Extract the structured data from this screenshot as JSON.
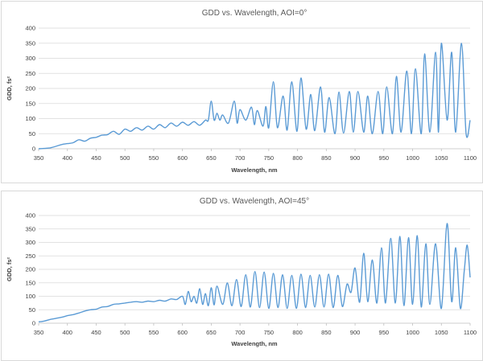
{
  "chart_data": [
    {
      "type": "line",
      "title": "GDD vs. Wavelength, AOI=0°",
      "xlabel": "Wavelength, nm",
      "ylabel": "GDD, fs²",
      "xlim": [
        350,
        1100
      ],
      "ylim": [
        0,
        400
      ],
      "xticks": [
        350,
        400,
        450,
        500,
        550,
        600,
        650,
        700,
        750,
        800,
        850,
        900,
        950,
        1000,
        1050,
        1100
      ],
      "yticks": [
        0,
        50,
        100,
        150,
        200,
        250,
        300,
        350,
        400
      ],
      "grid": true,
      "series": [
        {
          "name": "GDD",
          "color": "#5b9bd5",
          "x": [
            350,
            360,
            370,
            380,
            390,
            400,
            410,
            420,
            430,
            440,
            450,
            460,
            470,
            480,
            490,
            500,
            510,
            520,
            530,
            540,
            550,
            560,
            570,
            580,
            590,
            600,
            610,
            620,
            630,
            640,
            645,
            650,
            655,
            660,
            665,
            670,
            680,
            690,
            695,
            700,
            710,
            720,
            725,
            730,
            740,
            745,
            750,
            758,
            765,
            775,
            782,
            790,
            799,
            806,
            815,
            823,
            830,
            840,
            847,
            855,
            865,
            872,
            880,
            890,
            897,
            905,
            915,
            922,
            930,
            940,
            948,
            955,
            965,
            972,
            980,
            990,
            998,
            1005,
            1015,
            1021,
            1030,
            1040,
            1045,
            1050,
            1060,
            1068,
            1075,
            1085,
            1093,
            1100
          ],
          "y": [
            0,
            1,
            3,
            8,
            14,
            17,
            20,
            30,
            25,
            35,
            38,
            45,
            47,
            58,
            48,
            65,
            58,
            70,
            62,
            75,
            65,
            80,
            70,
            85,
            75,
            88,
            78,
            90,
            78,
            95,
            95,
            158,
            95,
            118,
            95,
            112,
            85,
            158,
            85,
            130,
            95,
            138,
            80,
            127,
            75,
            140,
            70,
            222,
            70,
            175,
            62,
            222,
            58,
            235,
            65,
            180,
            60,
            205,
            55,
            170,
            50,
            188,
            52,
            190,
            55,
            190,
            55,
            175,
            50,
            190,
            50,
            205,
            50,
            240,
            55,
            258,
            50,
            265,
            50,
            315,
            55,
            320,
            55,
            350,
            95,
            320,
            55,
            350,
            50,
            95
          ]
        }
      ]
    },
    {
      "type": "line",
      "title": "GDD vs. Wavelength, AOI=45°",
      "xlabel": "Wavelength, nm",
      "ylabel": "GDD, fs²",
      "xlim": [
        350,
        1100
      ],
      "ylim": [
        0,
        400
      ],
      "xticks": [
        350,
        400,
        450,
        500,
        550,
        600,
        650,
        700,
        750,
        800,
        850,
        900,
        950,
        1000,
        1050,
        1100
      ],
      "yticks": [
        0,
        50,
        100,
        150,
        200,
        250,
        300,
        350,
        400
      ],
      "grid": true,
      "series": [
        {
          "name": "GDD",
          "color": "#5b9bd5",
          "x": [
            350,
            360,
            370,
            380,
            390,
            400,
            410,
            420,
            430,
            440,
            450,
            460,
            470,
            480,
            490,
            500,
            510,
            520,
            530,
            540,
            550,
            560,
            570,
            580,
            590,
            600,
            605,
            610,
            615,
            620,
            625,
            630,
            635,
            640,
            645,
            650,
            655,
            660,
            670,
            678,
            686,
            694,
            702,
            710,
            718,
            726,
            734,
            742,
            750,
            758,
            766,
            774,
            782,
            790,
            798,
            806,
            814,
            822,
            830,
            838,
            846,
            854,
            862,
            870,
            878,
            886,
            893,
            900,
            908,
            915,
            922,
            930,
            938,
            946,
            953,
            962,
            970,
            978,
            985,
            993,
            1000,
            1008,
            1015,
            1023,
            1030,
            1040,
            1050,
            1060,
            1068,
            1075,
            1083,
            1090,
            1095,
            1100
          ],
          "y": [
            5,
            8,
            14,
            18,
            22,
            28,
            32,
            38,
            45,
            50,
            52,
            60,
            62,
            70,
            72,
            75,
            78,
            80,
            78,
            82,
            80,
            85,
            82,
            90,
            88,
            100,
            70,
            118,
            80,
            100,
            75,
            128,
            70,
            110,
            65,
            132,
            68,
            138,
            70,
            150,
            65,
            162,
            62,
            180,
            60,
            192,
            58,
            190,
            55,
            185,
            58,
            180,
            55,
            178,
            55,
            182,
            58,
            178,
            60,
            180,
            60,
            182,
            58,
            178,
            62,
            145,
            115,
            205,
            78,
            260,
            80,
            235,
            75,
            280,
            75,
            315,
            75,
            322,
            65,
            318,
            70,
            325,
            60,
            295,
            70,
            295,
            55,
            370,
            80,
            280,
            55,
            200,
            290,
            170
          ]
        }
      ]
    }
  ]
}
